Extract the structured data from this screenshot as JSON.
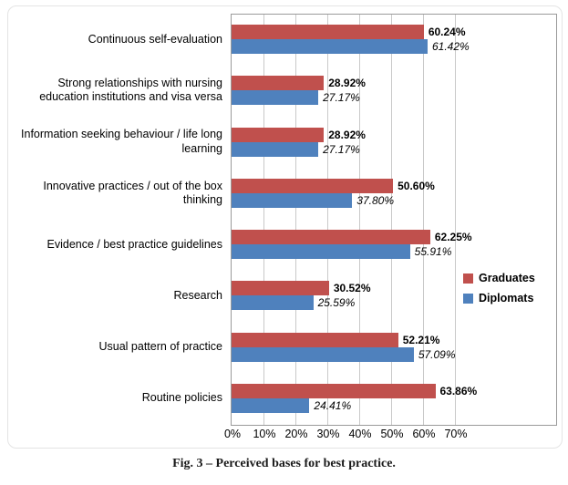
{
  "caption": "Fig. 3 – Perceived bases for best practice.",
  "chart_data": {
    "type": "bar",
    "orientation": "horizontal",
    "title": "",
    "categories": [
      "Continuous self-evaluation",
      "Strong relationships with nursing education institutions and visa versa",
      "Information seeking behaviour / life long learning",
      "Innovative practices / out of the box thinking",
      "Evidence / best practice guidelines",
      "Research",
      "Usual pattern of practice",
      "Routine policies"
    ],
    "series": [
      {
        "name": "Graduates",
        "color": "#C0504D",
        "values": [
          60.24,
          28.92,
          28.92,
          50.6,
          62.25,
          30.52,
          52.21,
          63.86
        ],
        "labels": [
          "60.24%",
          "28.92%",
          "28.92%",
          "50.60%",
          "62.25%",
          "30.52%",
          "52.21%",
          "63.86%"
        ]
      },
      {
        "name": "Diplomats",
        "color": "#4F81BD",
        "values": [
          61.42,
          27.17,
          27.17,
          37.8,
          55.91,
          25.59,
          57.09,
          24.41
        ],
        "labels": [
          "61.42%",
          "27.17%",
          "27.17%",
          "37.80%",
          "55.91%",
          "25.59%",
          "57.09%",
          "24.41%"
        ]
      }
    ],
    "x_ticks": [
      "0%",
      "10%",
      "20%",
      "30%",
      "40%",
      "50%",
      "60%",
      "70%"
    ],
    "xlim": [
      0,
      70
    ],
    "grid": true,
    "legend_position": "right-middle",
    "value_label_styles": {
      "Graduates": "bold",
      "Diplomats": "italic"
    }
  }
}
